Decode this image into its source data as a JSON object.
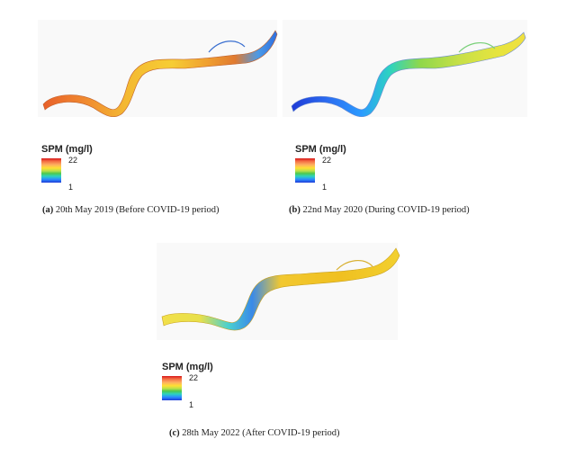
{
  "panels": [
    {
      "id": "a",
      "legend": {
        "title": "SPM (mg/l)",
        "max": "22",
        "min": "1"
      },
      "caption": {
        "letter": "(a)",
        "text": " 20th May 2019 (Before COVID-19 period)"
      }
    },
    {
      "id": "b",
      "legend": {
        "title": "SPM (mg/l)",
        "max": "22",
        "min": "1"
      },
      "caption": {
        "letter": "(b)",
        "text": " 22nd May 2020 (During COVID-19 period)"
      }
    },
    {
      "id": "c",
      "legend": {
        "title": "SPM (mg/l)",
        "max": "22",
        "min": "1"
      },
      "caption": {
        "letter": "(c)",
        "text": " 28th May 2022 (After COVID-19 period)"
      }
    }
  ],
  "colors": {
    "panel_a_river": [
      "#e85a2a",
      "#f08a30",
      "#f5c030",
      "#f7d63a",
      "#5aa0e8",
      "#2f6fe0"
    ],
    "panel_b_river": [
      "#1f3bd6",
      "#2b8bff",
      "#2dd3c0",
      "#b8e04a",
      "#f0e040"
    ],
    "panel_c_river": [
      "#f2e04a",
      "#2dbde0",
      "#4a90e8",
      "#f0c030",
      "#f2c827"
    ]
  }
}
